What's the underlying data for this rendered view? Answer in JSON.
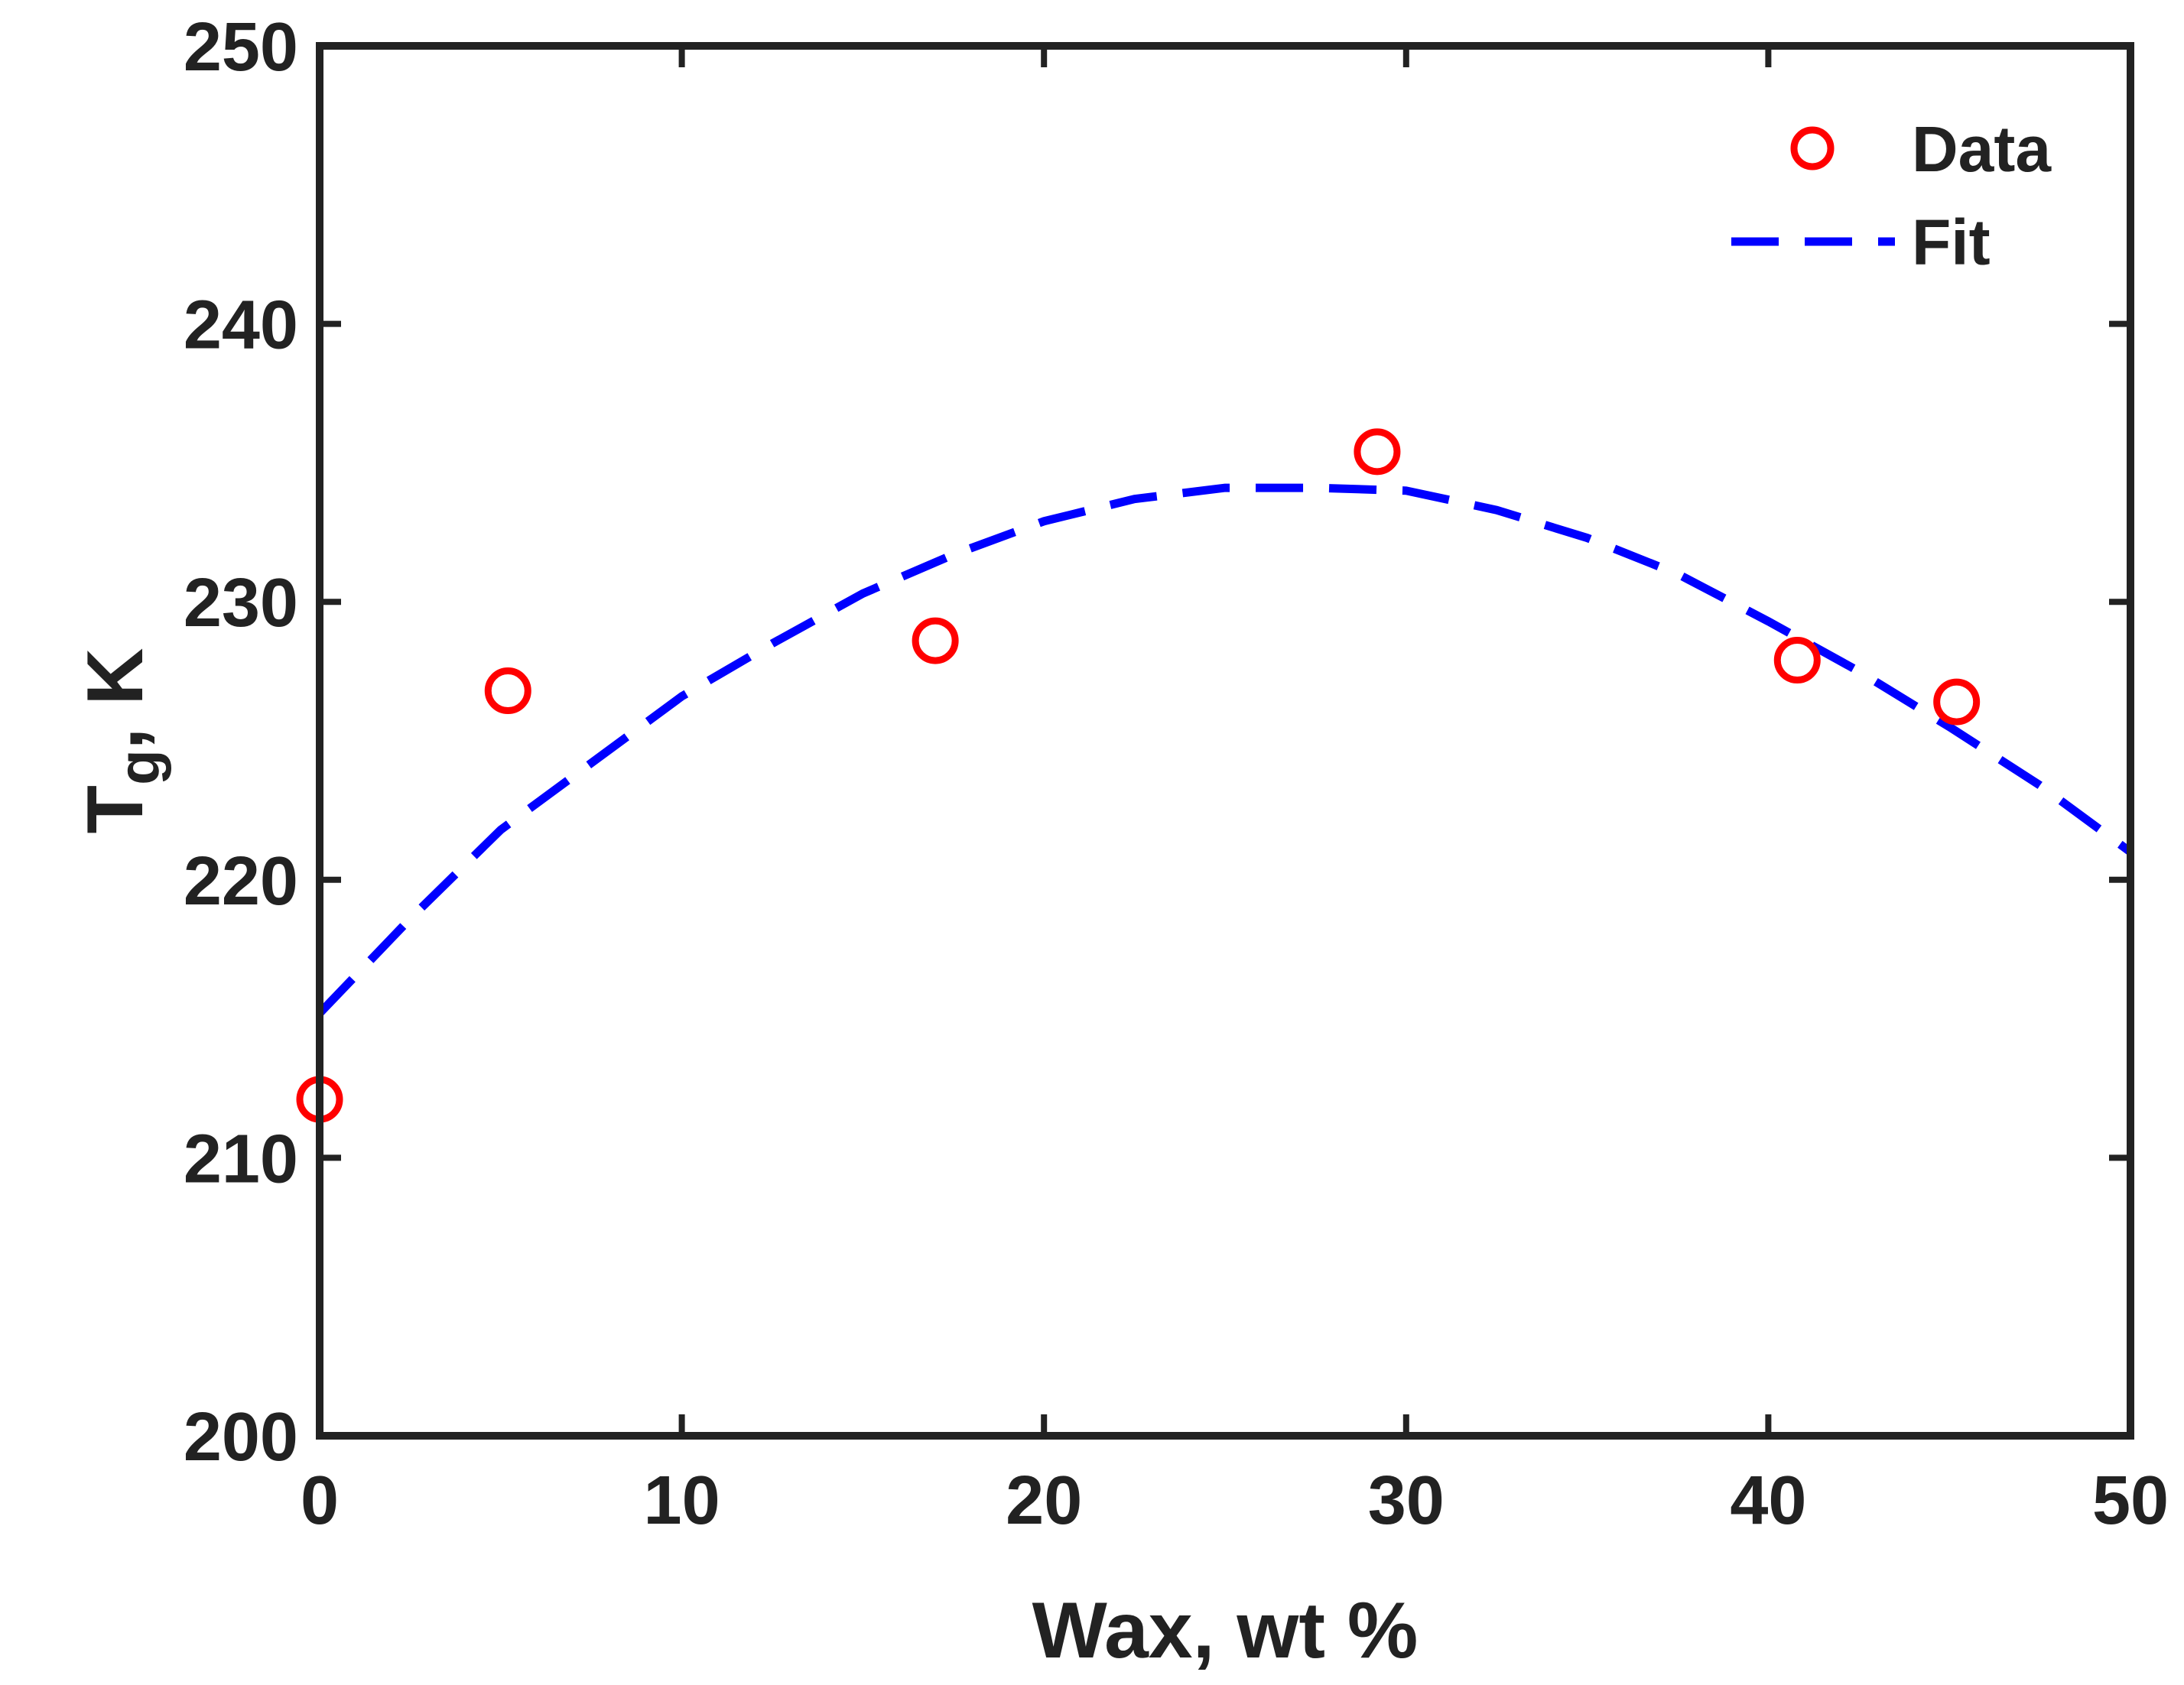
{
  "chart_data": {
    "type": "scatter",
    "title": "",
    "xlabel": "Wax, wt %",
    "ylabel": {
      "main": "T",
      "sub": "g",
      "suffix": ", K"
    },
    "xlim": [
      0,
      50
    ],
    "ylim": [
      200,
      250
    ],
    "xticks": [
      0,
      10,
      20,
      30,
      40,
      50
    ],
    "yticks": [
      200,
      210,
      220,
      230,
      240,
      250
    ],
    "grid": false,
    "legend_position": "top-right",
    "series": [
      {
        "name": "Data",
        "style": "markers",
        "marker": "circle",
        "color": "#ff0000",
        "x": [
          0,
          5.2,
          17.0,
          29.2,
          40.8,
          45.2
        ],
        "y": [
          212.1,
          226.8,
          228.6,
          235.4,
          227.9,
          226.4
        ]
      },
      {
        "name": "Fit",
        "style": "dashed-line",
        "color": "#0000ff",
        "x": [
          0,
          2.5,
          5,
          7.5,
          10,
          12.5,
          15,
          17.5,
          20,
          22.5,
          25,
          27.5,
          30,
          32.5,
          35,
          37.5,
          40,
          42.5,
          45,
          47.5,
          50
        ],
        "y": [
          215.2,
          218.6,
          221.8,
          224.2,
          226.6,
          228.5,
          230.3,
          231.7,
          232.9,
          233.7,
          234.1,
          234.1,
          234.0,
          233.3,
          232.3,
          231.0,
          229.3,
          227.5,
          225.5,
          223.4,
          221.0
        ]
      }
    ]
  }
}
